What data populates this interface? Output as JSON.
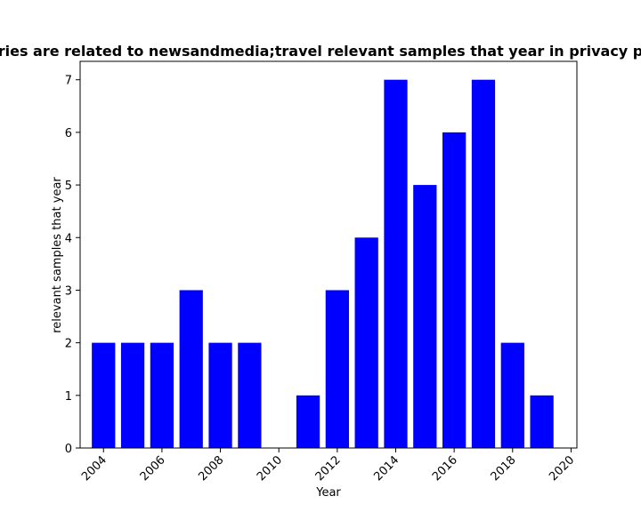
{
  "chart_data": {
    "type": "bar",
    "title": "ries are related to newsandmedia;travel relevant samples that year in privacy p",
    "xlabel": "Year",
    "ylabel": "relevant samples that year",
    "x": [
      2004,
      2005,
      2006,
      2007,
      2008,
      2009,
      2010,
      2011,
      2012,
      2013,
      2014,
      2015,
      2016,
      2017,
      2018,
      2019
    ],
    "values": [
      2,
      2,
      2,
      3,
      2,
      2,
      0,
      1,
      3,
      4,
      7,
      5,
      6,
      7,
      2,
      1
    ],
    "xlim": [
      2003.2,
      2020.2
    ],
    "ylim": [
      0,
      7.35
    ],
    "xticks": [
      2004,
      2006,
      2008,
      2010,
      2012,
      2014,
      2016,
      2018,
      2020
    ],
    "yticks": [
      0,
      1,
      2,
      3,
      4,
      5,
      6,
      7
    ],
    "bar_color": "#0000ff",
    "grid": false,
    "legend": "none"
  }
}
